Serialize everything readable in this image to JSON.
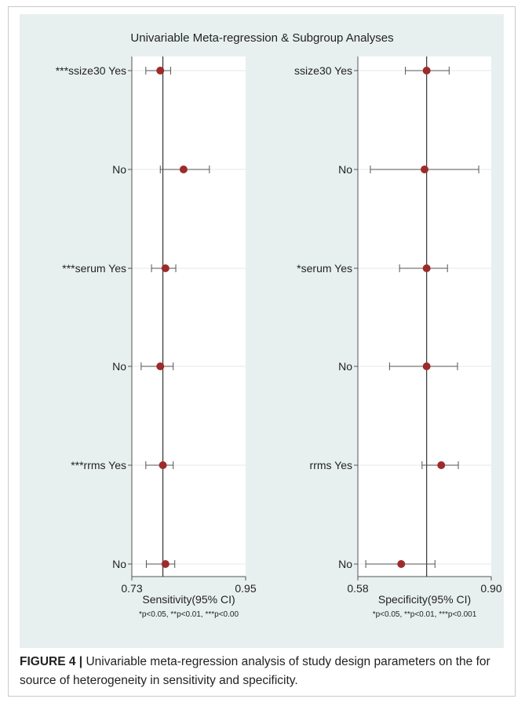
{
  "caption": {
    "label": "FIGURE 4 |",
    "text": "Univariable meta-regression analysis of study design parameters on the for source of heterogeneity in sensitivity and specificity."
  },
  "colors": {
    "panel_bg": "#e8f0ef",
    "plot_bg": "#ffffff",
    "marker": "#9c2b2b",
    "ci_line": "#555555",
    "reference_line": "#333333"
  },
  "chart_data": {
    "type": "forest",
    "title": "Univariable Meta-regression & Subgroup Analyses",
    "panels": [
      {
        "xlabel": "Sensitivity(95% CI)",
        "note": "*p<0.05, **p<0.01, ***p<0.00",
        "xlim": [
          0.73,
          0.95
        ],
        "xticks": [
          "0.73",
          "0.95"
        ],
        "reference": 0.79,
        "rows": [
          {
            "label": "***ssize30 Yes",
            "est": 0.785,
            "lo": 0.757,
            "hi": 0.805
          },
          {
            "label": "No",
            "est": 0.83,
            "lo": 0.785,
            "hi": 0.88
          },
          {
            "label": "***serum Yes",
            "est": 0.795,
            "lo": 0.768,
            "hi": 0.815
          },
          {
            "label": "No",
            "est": 0.785,
            "lo": 0.748,
            "hi": 0.81
          },
          {
            "label": "***rrms Yes",
            "est": 0.79,
            "lo": 0.757,
            "hi": 0.81
          },
          {
            "label": "No",
            "est": 0.795,
            "lo": 0.758,
            "hi": 0.813
          }
        ]
      },
      {
        "xlabel": "Specificity(95% CI)",
        "note": "*p<0.05, **p<0.01, ***p<0.001",
        "xlim": [
          0.58,
          0.9
        ],
        "xticks": [
          "0.58",
          "0.90"
        ],
        "reference": 0.745,
        "rows": [
          {
            "label": "ssize30 Yes",
            "est": 0.745,
            "lo": 0.694,
            "hi": 0.799
          },
          {
            "label": "No",
            "est": 0.74,
            "lo": 0.61,
            "hi": 0.87
          },
          {
            "label": "*serum Yes",
            "est": 0.745,
            "lo": 0.68,
            "hi": 0.795
          },
          {
            "label": "No",
            "est": 0.745,
            "lo": 0.656,
            "hi": 0.819
          },
          {
            "label": "rrms Yes",
            "est": 0.78,
            "lo": 0.734,
            "hi": 0.821
          },
          {
            "label": "No",
            "est": 0.684,
            "lo": 0.599,
            "hi": 0.765
          }
        ]
      }
    ]
  }
}
